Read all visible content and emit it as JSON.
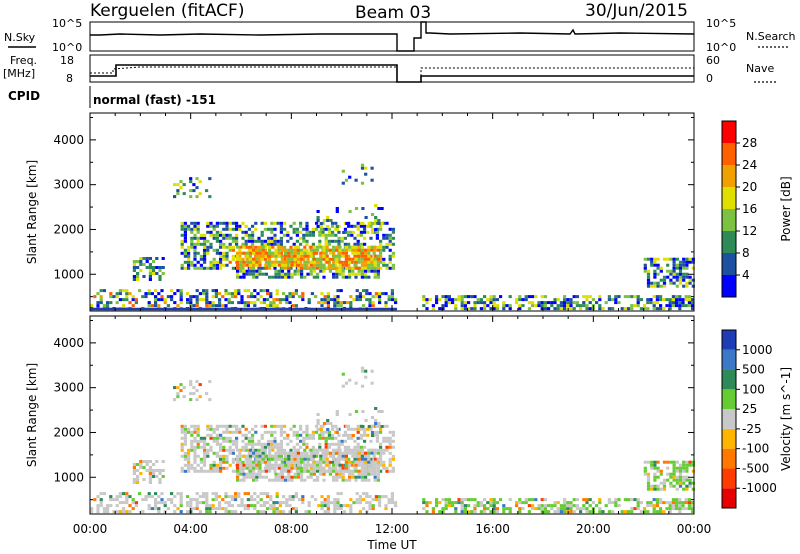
{
  "header": {
    "station": "Kerguelen (fitACF)",
    "beam": "Beam 03",
    "date": "30/Jun/2015"
  },
  "top_panels": {
    "nsky_label": "N.Sky",
    "nsky_ticks": [
      "10^5",
      "10^0"
    ],
    "nsearch_label": "N.Search",
    "nsearch_ticks": [
      "10^5",
      "10^0"
    ],
    "freq_label": "Freq.",
    "freq_unit": "[MHz]",
    "freq_ticks": [
      "18",
      "8"
    ],
    "nave_label": "Nave",
    "nave_ticks": [
      "60",
      "0"
    ],
    "cpid_label": "CPID",
    "cpid_value": "normal (fast) -151"
  },
  "chart_data": [
    {
      "type": "heatmap",
      "name": "power",
      "ylabel": "Slant Range [km]",
      "ylim": [
        180,
        4600
      ],
      "yticks": [
        1000,
        2000,
        3000,
        4000
      ],
      "colorbar": {
        "label": "Power [dB]",
        "ticks": [
          "4",
          "8",
          "12",
          "16",
          "20",
          "24",
          "28"
        ],
        "colors": [
          "#0000ff",
          "#1e50a0",
          "#2e8b57",
          "#7cc242",
          "#e0e000",
          "#f0a000",
          "#ff6000",
          "#ff0000"
        ]
      }
    },
    {
      "type": "heatmap",
      "name": "velocity",
      "ylabel": "Slant Range [km]",
      "ylim": [
        180,
        4600
      ],
      "yticks": [
        1000,
        2000,
        3000,
        4000
      ],
      "colorbar": {
        "label": "Velocity [m s^-1]",
        "ticks": [
          "1000",
          "500",
          "100",
          "25",
          "-25",
          "-100",
          "-500",
          "-1000"
        ],
        "colors": [
          "#1e3cb4",
          "#3c78c8",
          "#2e8b57",
          "#66cc33",
          "#c8c8c8",
          "#ffb400",
          "#ff7800",
          "#ff3c00",
          "#e60000"
        ]
      }
    }
  ],
  "x_axis": {
    "label": "Time UT",
    "ticks": [
      "00:00",
      "04:00",
      "08:00",
      "12:00",
      "16:00",
      "20:00",
      "00:00"
    ]
  }
}
